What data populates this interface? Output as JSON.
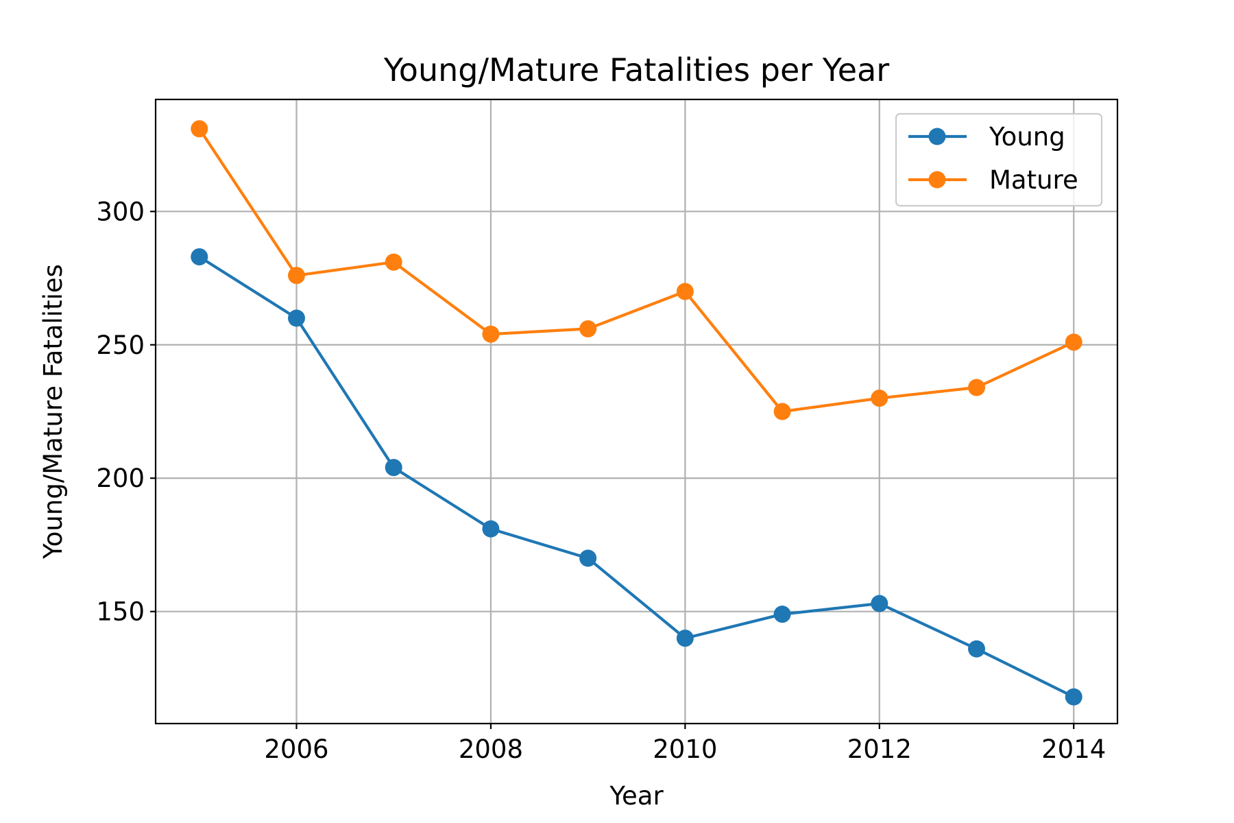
{
  "chart_data": {
    "type": "line",
    "title": "Young/Mature Fatalities per Year",
    "xlabel": "Year",
    "ylabel": "Young/Mature Fatalities",
    "x": [
      2005,
      2006,
      2007,
      2008,
      2009,
      2010,
      2011,
      2012,
      2013,
      2014
    ],
    "xlim": [
      2004.55,
      2014.45
    ],
    "ylim": [
      108,
      342
    ],
    "xticks": [
      2006,
      2008,
      2010,
      2012,
      2014
    ],
    "yticks": [
      150,
      200,
      250,
      300
    ],
    "grid": true,
    "legend_position": "upper-right",
    "series": [
      {
        "name": "Young",
        "color": "#1f77b4",
        "values": [
          283,
          260,
          204,
          181,
          170,
          140,
          149,
          153,
          136,
          118
        ]
      },
      {
        "name": "Mature",
        "color": "#ff7f0e",
        "values": [
          331,
          276,
          281,
          254,
          256,
          270,
          225,
          230,
          234,
          251
        ]
      }
    ]
  }
}
